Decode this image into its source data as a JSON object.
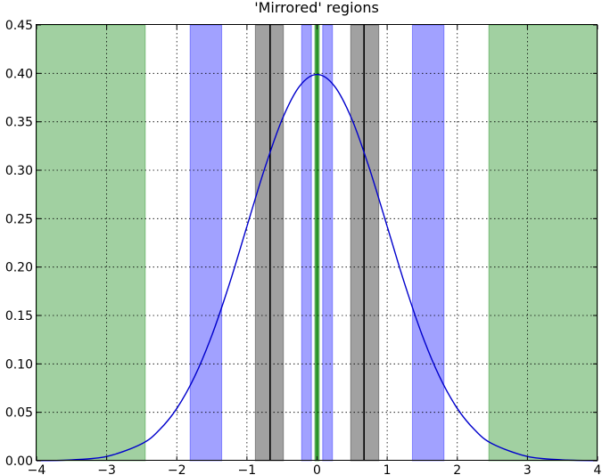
{
  "chart_data": {
    "type": "line",
    "title": "'Mirrored' regions",
    "xlabel": "",
    "ylabel": "",
    "xlim": [
      -4,
      4
    ],
    "ylim": [
      0,
      0.45
    ],
    "grid": true,
    "x_ticks": [
      -4,
      -3,
      -2,
      -1,
      0,
      1,
      2,
      3,
      4
    ],
    "x_tick_labels": [
      "−4",
      "−3",
      "−2",
      "−1",
      "0",
      "1",
      "2",
      "3",
      "4"
    ],
    "y_ticks": [
      0,
      0.05,
      0.1,
      0.15,
      0.2,
      0.25,
      0.3,
      0.35,
      0.4,
      0.45
    ],
    "y_tick_labels": [
      "0.00",
      "0.05",
      "0.10",
      "0.15",
      "0.20",
      "0.25",
      "0.30",
      "0.35",
      "0.40",
      "0.45"
    ],
    "series": [
      {
        "color": "#0000cc",
        "x": [
          -4.0,
          -3.5,
          -3.0,
          -2.5,
          -2.25,
          -2.0,
          -1.75,
          -1.5,
          -1.25,
          -1.0,
          -0.75,
          -0.5,
          -0.25,
          0.0,
          0.25,
          0.5,
          0.75,
          1.0,
          1.25,
          1.5,
          1.75,
          2.0,
          2.25,
          2.5,
          3.0,
          3.5,
          4.0
        ],
        "y": [
          0.0001,
          0.0009,
          0.0044,
          0.0175,
          0.0317,
          0.054,
          0.0863,
          0.1295,
          0.1826,
          0.242,
          0.3011,
          0.3521,
          0.3867,
          0.3989,
          0.3867,
          0.3521,
          0.3011,
          0.242,
          0.1826,
          0.1295,
          0.0863,
          0.054,
          0.0317,
          0.0175,
          0.0044,
          0.0009,
          0.0001
        ]
      }
    ],
    "shaded_regions": [
      {
        "x0": -4.0,
        "x1": -2.45,
        "color": "#008000",
        "opacity": 0.37
      },
      {
        "x0": 2.45,
        "x1": 4.0,
        "color": "#008000",
        "opacity": 0.37
      },
      {
        "x0": -1.81,
        "x1": -1.36,
        "color": "#0000ff",
        "opacity": 0.37
      },
      {
        "x0": 1.36,
        "x1": 1.81,
        "color": "#0000ff",
        "opacity": 0.37
      },
      {
        "x0": -0.22,
        "x1": -0.08,
        "color": "#0000ff",
        "opacity": 0.37
      },
      {
        "x0": 0.08,
        "x1": 0.22,
        "color": "#0000ff",
        "opacity": 0.37
      },
      {
        "x0": -0.88,
        "x1": -0.48,
        "color": "#000000",
        "opacity": 0.37
      },
      {
        "x0": 0.48,
        "x1": 0.88,
        "color": "#000000",
        "opacity": 0.37
      },
      {
        "x0": -0.03,
        "x1": 0.03,
        "color": "#008000",
        "opacity": 0.55
      }
    ],
    "vertical_lines": [
      {
        "x": -0.67,
        "color": "#000000"
      },
      {
        "x": 0.67,
        "color": "#000000"
      },
      {
        "x": 0.0,
        "color": "#008000"
      }
    ]
  }
}
